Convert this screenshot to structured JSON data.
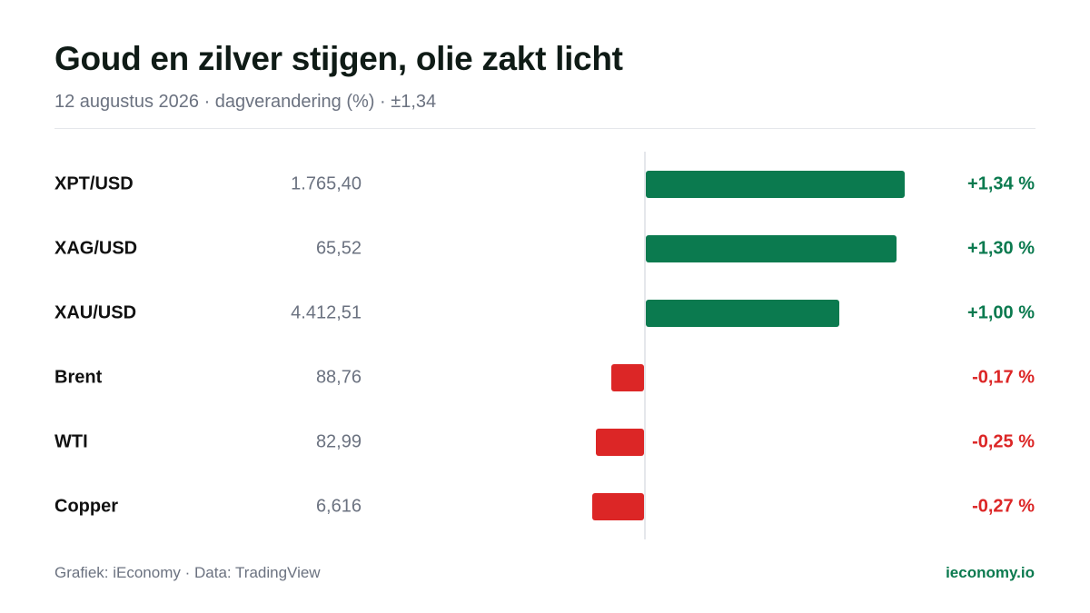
{
  "header": {
    "title": "Goud en zilver stijgen, olie zakt licht",
    "subtitle": "12 augustus 2026 · dagverandering (%) · ±1,34"
  },
  "footer": {
    "source": "Grafiek: iEconomy · Data: TradingView",
    "brand": "ieconomy.io"
  },
  "colors": {
    "positive": "#0b7a4f",
    "negative": "#dc2626",
    "brand": "#0b7a4f"
  },
  "chart_data": {
    "type": "bar",
    "orientation": "horizontal",
    "categories": [
      "XPT/USD",
      "XAG/USD",
      "XAU/USD",
      "Brent",
      "WTI",
      "Copper"
    ],
    "prices": [
      "1.765,40",
      "65,52",
      "4.412,51",
      "88,76",
      "82,99",
      "6,616"
    ],
    "values": [
      1.34,
      1.3,
      1.0,
      -0.17,
      -0.25,
      -0.27
    ],
    "value_labels": [
      "+1,34 %",
      "+1,30 %",
      "+1,00 %",
      "-0,17 %",
      "-0,25 %",
      "-0,27 %"
    ],
    "title": "Goud en zilver stijgen, olie zakt licht",
    "xlabel": "",
    "ylabel": "",
    "xlim": [
      -1.34,
      1.34
    ],
    "grid": false,
    "legend": "none"
  }
}
